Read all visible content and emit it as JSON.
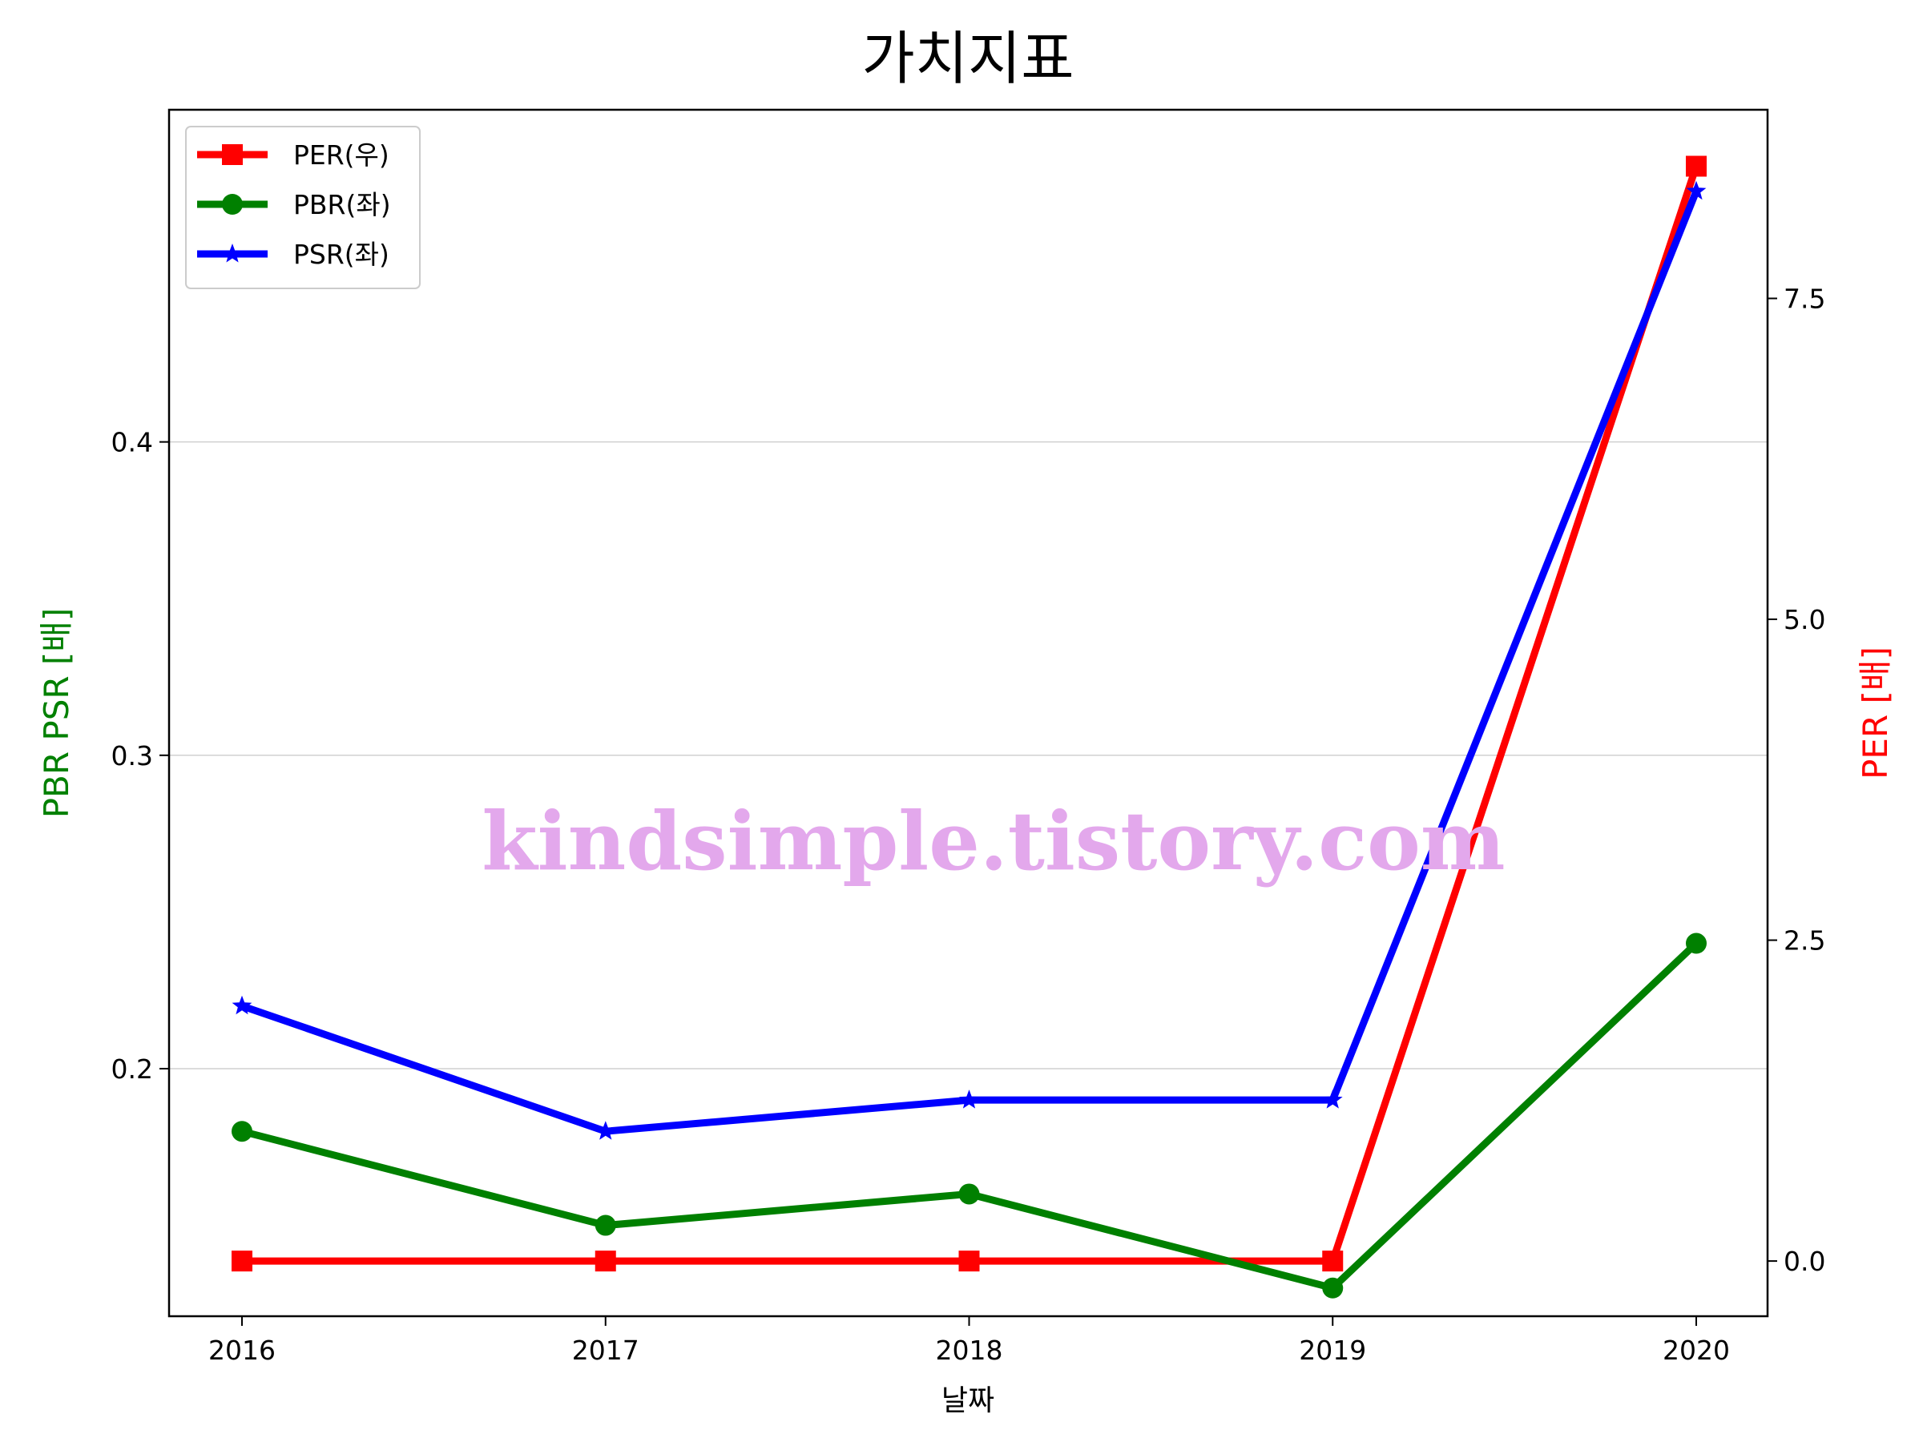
{
  "chart_data": {
    "type": "line",
    "title": "가치지표",
    "xlabel": "날짜",
    "ylabel_left": "PBR PSR [배]",
    "ylabel_right": "PER [배]",
    "categories": [
      "2016",
      "2017",
      "2018",
      "2019",
      "2020"
    ],
    "y_left_ticks": [
      "0.2",
      "0.3",
      "0.4"
    ],
    "y_left_lim": [
      0.121,
      0.506
    ],
    "y_right_ticks": [
      "0.0",
      "2.5",
      "5.0",
      "7.5"
    ],
    "y_right_lim": [
      -0.43,
      8.97
    ],
    "grid": "horizontal (left axis)",
    "legend_position": "upper left",
    "series": [
      {
        "name": "PER(우)",
        "axis": "right",
        "color": "#ff0000",
        "marker": "square",
        "values": [
          0,
          0,
          0,
          0,
          8.53
        ]
      },
      {
        "name": "PBR(좌)",
        "axis": "left",
        "color": "#008000",
        "marker": "circle",
        "values": [
          0.18,
          0.15,
          0.16,
          0.13,
          0.24
        ]
      },
      {
        "name": "PSR(좌)",
        "axis": "left",
        "color": "#0000ff",
        "marker": "star",
        "values": [
          0.22,
          0.18,
          0.19,
          0.19,
          0.48
        ]
      }
    ]
  },
  "watermark": "kindsimple.tistory.com",
  "colors": {
    "left_label": "#008000",
    "right_label": "#ff0000",
    "watermark": "#e3a8ec"
  }
}
